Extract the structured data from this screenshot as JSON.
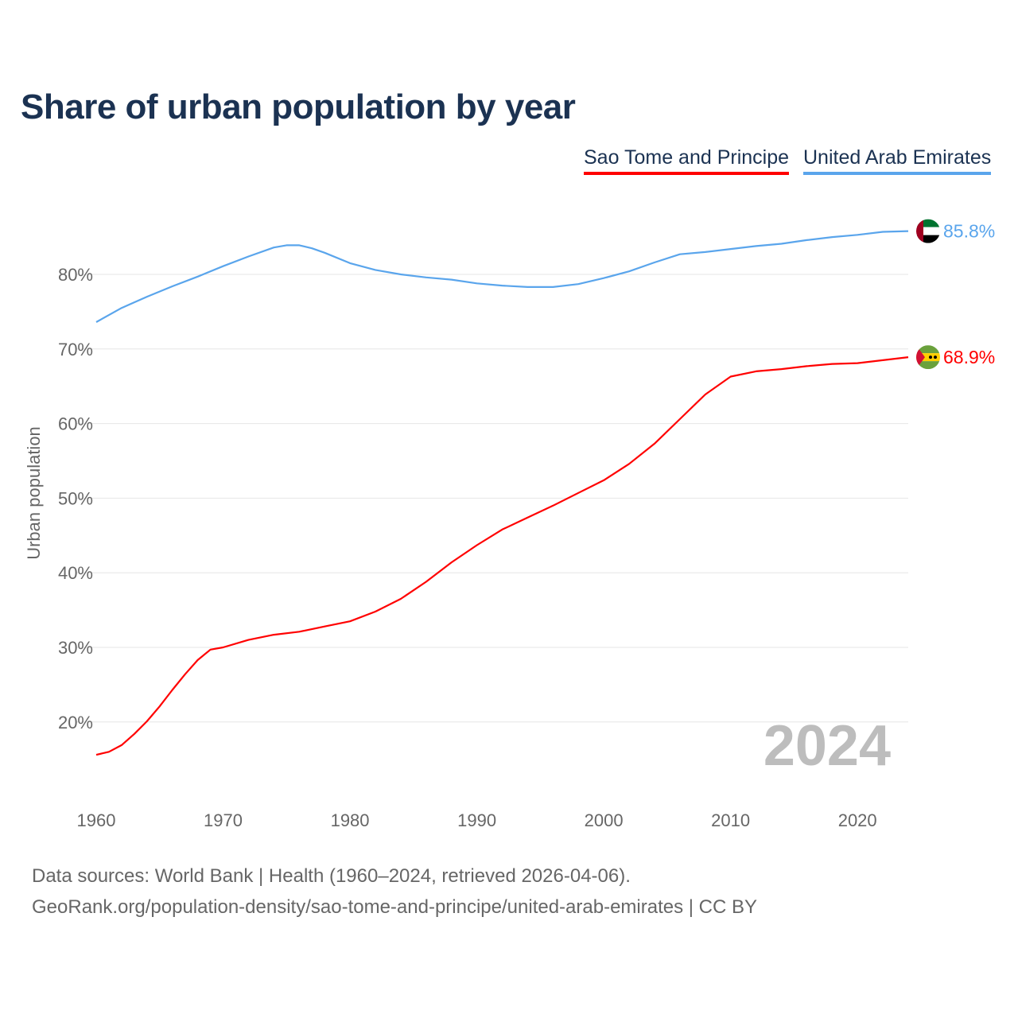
{
  "chart_data": {
    "type": "line",
    "title": "Share of urban population by year",
    "xlabel": "",
    "ylabel": "Urban population",
    "xlim": [
      1960,
      2024
    ],
    "ylim": [
      10,
      90
    ],
    "yticks": [
      20,
      30,
      40,
      50,
      60,
      70,
      80
    ],
    "ytick_labels": [
      "20%",
      "30%",
      "40%",
      "50%",
      "60%",
      "70%",
      "80%"
    ],
    "xticks": [
      1960,
      1970,
      1980,
      1990,
      2000,
      2010,
      2020
    ],
    "xtick_labels": [
      "1960",
      "1970",
      "1980",
      "1990",
      "2000",
      "2010",
      "2020"
    ],
    "grid": true,
    "legend_position": "top-right",
    "year_watermark": "2024",
    "series": [
      {
        "name": "Sao Tome and Principe",
        "color": "#ff0000",
        "end_label": "68.9%",
        "flag": "sao-tome-and-principe-flag",
        "x": [
          1960,
          1961,
          1962,
          1963,
          1964,
          1965,
          1966,
          1967,
          1968,
          1969,
          1970,
          1972,
          1974,
          1976,
          1978,
          1980,
          1982,
          1984,
          1986,
          1988,
          1990,
          1992,
          1994,
          1996,
          1998,
          2000,
          2002,
          2004,
          2006,
          2008,
          2010,
          2012,
          2014,
          2016,
          2018,
          2020,
          2022,
          2024
        ],
        "values": [
          15.6,
          16.0,
          16.9,
          18.4,
          20.1,
          22.1,
          24.3,
          26.4,
          28.3,
          29.7,
          30.0,
          31.0,
          31.7,
          32.1,
          32.8,
          33.5,
          34.8,
          36.5,
          38.8,
          41.4,
          43.7,
          45.8,
          47.4,
          49.0,
          50.7,
          52.4,
          54.6,
          57.3,
          60.6,
          63.9,
          66.3,
          67.0,
          67.3,
          67.7,
          68.0,
          68.1,
          68.5,
          68.9
        ]
      },
      {
        "name": "United Arab Emirates",
        "color": "#5aa5ec",
        "end_label": "85.8%",
        "flag": "united-arab-emirates-flag",
        "x": [
          1960,
          1962,
          1964,
          1966,
          1968,
          1970,
          1972,
          1974,
          1975,
          1976,
          1977,
          1978,
          1980,
          1982,
          1984,
          1986,
          1988,
          1990,
          1992,
          1994,
          1996,
          1998,
          2000,
          2002,
          2004,
          2006,
          2008,
          2010,
          2012,
          2014,
          2016,
          2018,
          2020,
          2022,
          2024
        ],
        "values": [
          73.6,
          75.5,
          77.0,
          78.4,
          79.7,
          81.1,
          82.4,
          83.6,
          83.9,
          83.9,
          83.5,
          82.9,
          81.5,
          80.6,
          80.0,
          79.6,
          79.3,
          78.8,
          78.5,
          78.3,
          78.3,
          78.7,
          79.5,
          80.4,
          81.6,
          82.7,
          83.0,
          83.4,
          83.8,
          84.1,
          84.6,
          85.0,
          85.3,
          85.7,
          85.8
        ]
      }
    ]
  },
  "footer": {
    "line1": "Data sources: World Bank | Health (1960–2024, retrieved 2026-04-06).",
    "line2": "GeoRank.org/population-density/sao-tome-and-principe/united-arab-emirates | CC BY"
  }
}
